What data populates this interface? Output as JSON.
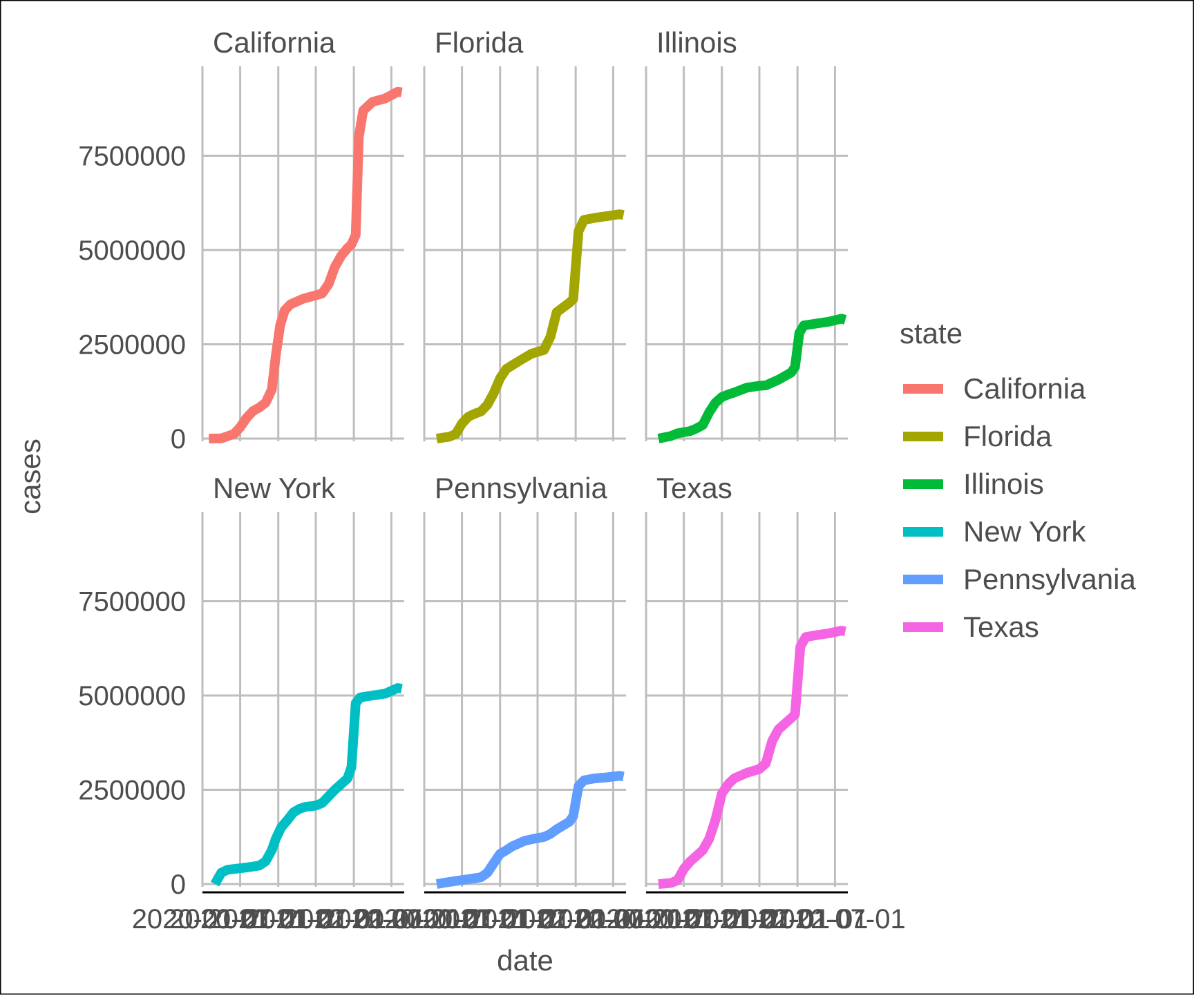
{
  "chart_data": {
    "type": "line",
    "layout": "facet-grid",
    "xlabel": "date",
    "ylabel": "cases",
    "x_ticks": [
      "2020-01-01",
      "2020-07-01",
      "2021-01-01",
      "2021-07-01",
      "2022-01-01",
      "2022-07-01"
    ],
    "xlim": [
      "2020-01-01",
      "2022-09-01"
    ],
    "y_ticks": [
      0,
      2500000,
      5000000,
      7500000
    ],
    "ylim": [
      0,
      9800000
    ],
    "grid": true,
    "legend": {
      "title": "state",
      "position": "right",
      "items": [
        "California",
        "Florida",
        "Illinois",
        "New York",
        "Pennsylvania",
        "Texas"
      ]
    },
    "series": [
      {
        "name": "California",
        "color": "#F8766D",
        "x": [
          "2020-02-01",
          "2020-04-01",
          "2020-06-01",
          "2020-07-01",
          "2020-08-01",
          "2020-09-01",
          "2020-10-01",
          "2020-11-01",
          "2020-12-01",
          "2020-12-20",
          "2021-01-10",
          "2021-02-01",
          "2021-03-01",
          "2021-05-01",
          "2021-07-01",
          "2021-08-01",
          "2021-09-01",
          "2021-10-01",
          "2021-11-01",
          "2021-12-01",
          "2021-12-20",
          "2022-01-10",
          "2022-01-25",
          "2022-02-15",
          "2022-04-01",
          "2022-06-01",
          "2022-08-01",
          "2022-08-20"
        ],
        "values": [
          0,
          5000,
          120000,
          300000,
          550000,
          730000,
          820000,
          950000,
          1300000,
          2200000,
          3000000,
          3400000,
          3560000,
          3710000,
          3800000,
          3850000,
          4100000,
          4550000,
          4850000,
          5050000,
          5150000,
          5400000,
          8000000,
          8700000,
          8930000,
          9020000,
          9200000,
          9180000
        ]
      },
      {
        "name": "Florida",
        "color": "#A3A500",
        "x": [
          "2020-03-01",
          "2020-05-01",
          "2020-06-01",
          "2020-07-01",
          "2020-08-01",
          "2020-09-01",
          "2020-10-01",
          "2020-11-01",
          "2020-12-01",
          "2021-01-01",
          "2021-02-01",
          "2021-04-01",
          "2021-06-01",
          "2021-07-01",
          "2021-08-01",
          "2021-09-01",
          "2021-10-01",
          "2021-12-01",
          "2021-12-20",
          "2022-01-15",
          "2022-02-10",
          "2022-04-01",
          "2022-06-01",
          "2022-08-01",
          "2022-08-20"
        ],
        "values": [
          0,
          50000,
          120000,
          400000,
          580000,
          660000,
          720000,
          900000,
          1200000,
          1600000,
          1850000,
          2050000,
          2250000,
          2300000,
          2350000,
          2700000,
          3350000,
          3600000,
          3700000,
          5500000,
          5800000,
          5850000,
          5900000,
          5950000,
          5930000
        ]
      },
      {
        "name": "Illinois",
        "color": "#00BA38",
        "x": [
          "2020-03-01",
          "2020-05-01",
          "2020-06-01",
          "2020-08-01",
          "2020-09-01",
          "2020-10-01",
          "2020-11-01",
          "2020-12-01",
          "2021-01-01",
          "2021-02-01",
          "2021-03-01",
          "2021-05-01",
          "2021-07-01",
          "2021-08-01",
          "2021-10-01",
          "2021-12-01",
          "2021-12-20",
          "2022-01-10",
          "2022-02-01",
          "2022-04-01",
          "2022-06-01",
          "2022-08-01",
          "2022-08-20"
        ],
        "values": [
          0,
          70000,
          140000,
          200000,
          270000,
          360000,
          700000,
          950000,
          1100000,
          1170000,
          1220000,
          1350000,
          1400000,
          1410000,
          1560000,
          1750000,
          1900000,
          2800000,
          3000000,
          3050000,
          3100000,
          3180000,
          3150000
        ]
      },
      {
        "name": "New York",
        "color": "#00BFC4",
        "x": [
          "2020-03-01",
          "2020-04-01",
          "2020-05-01",
          "2020-06-01",
          "2020-08-01",
          "2020-10-01",
          "2020-11-01",
          "2020-12-01",
          "2020-12-20",
          "2021-01-15",
          "2021-02-15",
          "2021-03-15",
          "2021-04-15",
          "2021-05-15",
          "2021-07-01",
          "2021-08-01",
          "2021-10-01",
          "2021-12-01",
          "2021-12-20",
          "2022-01-10",
          "2022-02-01",
          "2022-04-01",
          "2022-06-01",
          "2022-08-01",
          "2022-08-20"
        ],
        "values": [
          0,
          300000,
          380000,
          400000,
          440000,
          490000,
          600000,
          900000,
          1200000,
          1500000,
          1700000,
          1900000,
          2000000,
          2050000,
          2080000,
          2150000,
          2500000,
          2800000,
          3100000,
          4800000,
          4950000,
          5000000,
          5050000,
          5200000,
          5180000
        ]
      },
      {
        "name": "Pennsylvania",
        "color": "#619CFF",
        "x": [
          "2020-03-01",
          "2020-04-01",
          "2020-06-01",
          "2020-08-01",
          "2020-10-01",
          "2020-11-01",
          "2020-12-01",
          "2021-01-01",
          "2021-02-01",
          "2021-03-01",
          "2021-05-01",
          "2021-07-01",
          "2021-08-01",
          "2021-09-01",
          "2021-10-01",
          "2021-12-01",
          "2021-12-20",
          "2022-01-15",
          "2022-02-10",
          "2022-04-01",
          "2022-06-01",
          "2022-08-01",
          "2022-08-20"
        ],
        "values": [
          0,
          30000,
          80000,
          130000,
          180000,
          300000,
          550000,
          800000,
          900000,
          1000000,
          1150000,
          1220000,
          1250000,
          1330000,
          1450000,
          1650000,
          1800000,
          2600000,
          2750000,
          2800000,
          2830000,
          2870000,
          2850000
        ]
      },
      {
        "name": "Texas",
        "color": "#F564E3",
        "x": [
          "2020-03-01",
          "2020-05-01",
          "2020-06-01",
          "2020-07-01",
          "2020-08-01",
          "2020-09-01",
          "2020-10-01",
          "2020-11-01",
          "2020-12-01",
          "2021-01-01",
          "2021-02-01",
          "2021-03-01",
          "2021-05-01",
          "2021-07-01",
          "2021-08-01",
          "2021-09-01",
          "2021-10-01",
          "2021-12-01",
          "2021-12-20",
          "2022-01-15",
          "2022-02-10",
          "2022-04-01",
          "2022-06-01",
          "2022-08-01",
          "2022-08-20"
        ],
        "values": [
          0,
          30000,
          100000,
          400000,
          600000,
          750000,
          900000,
          1200000,
          1700000,
          2400000,
          2650000,
          2800000,
          2950000,
          3050000,
          3200000,
          3800000,
          4100000,
          4400000,
          4500000,
          6300000,
          6550000,
          6600000,
          6650000,
          6720000,
          6700000
        ]
      }
    ]
  }
}
